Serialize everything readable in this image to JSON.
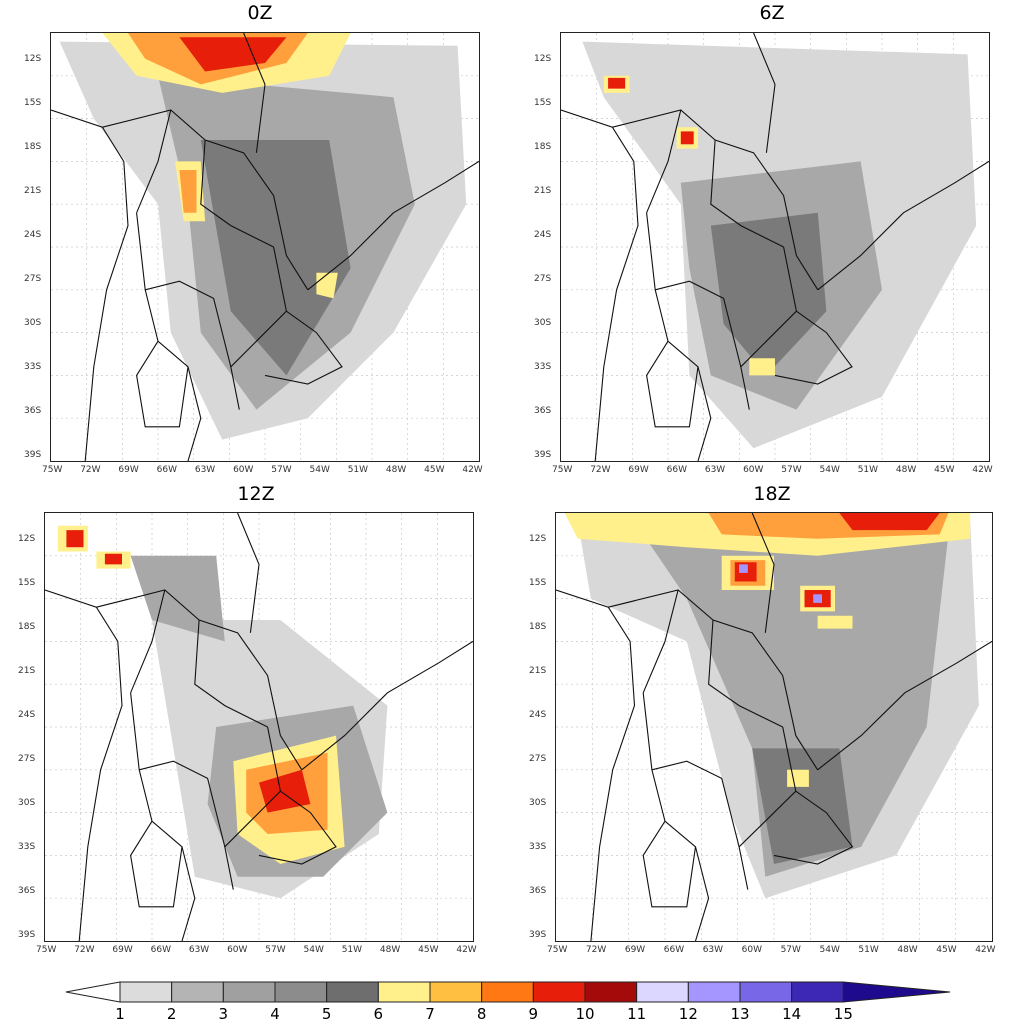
{
  "panels": [
    {
      "title": "0Z"
    },
    {
      "title": "6Z"
    },
    {
      "title": "12Z"
    },
    {
      "title": "18Z"
    }
  ],
  "lat_labels": [
    "12S",
    "15S",
    "18S",
    "21S",
    "24S",
    "27S",
    "30S",
    "33S",
    "36S",
    "39S"
  ],
  "lon_labels": [
    "75W",
    "72W",
    "69W",
    "66W",
    "63W",
    "60W",
    "57W",
    "54W",
    "51W",
    "48W",
    "45W",
    "42W"
  ],
  "colorbar": {
    "labels": [
      "1",
      "2",
      "3",
      "4",
      "5",
      "6",
      "7",
      "8",
      "9",
      "10",
      "11",
      "12",
      "13",
      "14",
      "15"
    ],
    "colors": [
      "#ffffff",
      "#dcdcdc",
      "#b4b4b4",
      "#a0a0a0",
      "#8c8c8c",
      "#6e6e6e",
      "#fff08c",
      "#ffc041",
      "#ff7814",
      "#e61e0a",
      "#a50a0a",
      "#dcd7ff",
      "#a596ff",
      "#7867e6",
      "#3c28b4",
      "#1e0a8c"
    ]
  },
  "map_colors": {
    "light_gray": "#d8d8d8",
    "mid_gray": "#a8a8a8",
    "dark_gray": "#7a7a7a",
    "yellow": "#fff08c",
    "orange": "#ffa03c",
    "red": "#e61e0a",
    "dark_red": "#a50a0a",
    "purple": "#a596ff",
    "border": "#111111"
  }
}
